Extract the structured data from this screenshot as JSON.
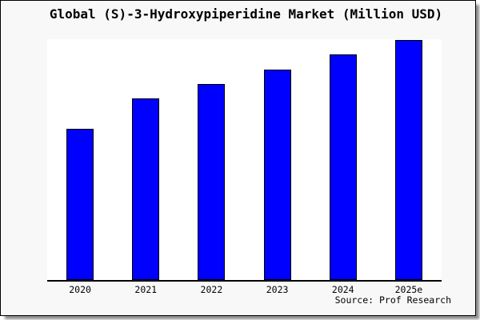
{
  "chart_data": {
    "type": "bar",
    "title": "Global (S)-3-Hydroxypiperidine Market (Million USD)",
    "categories": [
      "2020",
      "2021",
      "2022",
      "2023",
      "2024",
      "2025e"
    ],
    "values": [
      63,
      75.5,
      81.7,
      87.7,
      94,
      100
    ],
    "xlabel": "",
    "ylabel": "",
    "y_axis_visible": false,
    "gridlines": false,
    "legend_position": "none",
    "value_note": "no y-axis labels shown; values are relative bar heights with tallest bar (2025e) = 100",
    "bar_fill_color": "#0000ff",
    "bar_border_color": "#000000"
  },
  "source": {
    "text": "Source: Prof Research"
  },
  "colors": {
    "canvas_background": "#f8f8f8",
    "plot_background": "#ffffff",
    "frame_border": "#000000",
    "axis_line": "#000000",
    "title_text": "#000000"
  }
}
